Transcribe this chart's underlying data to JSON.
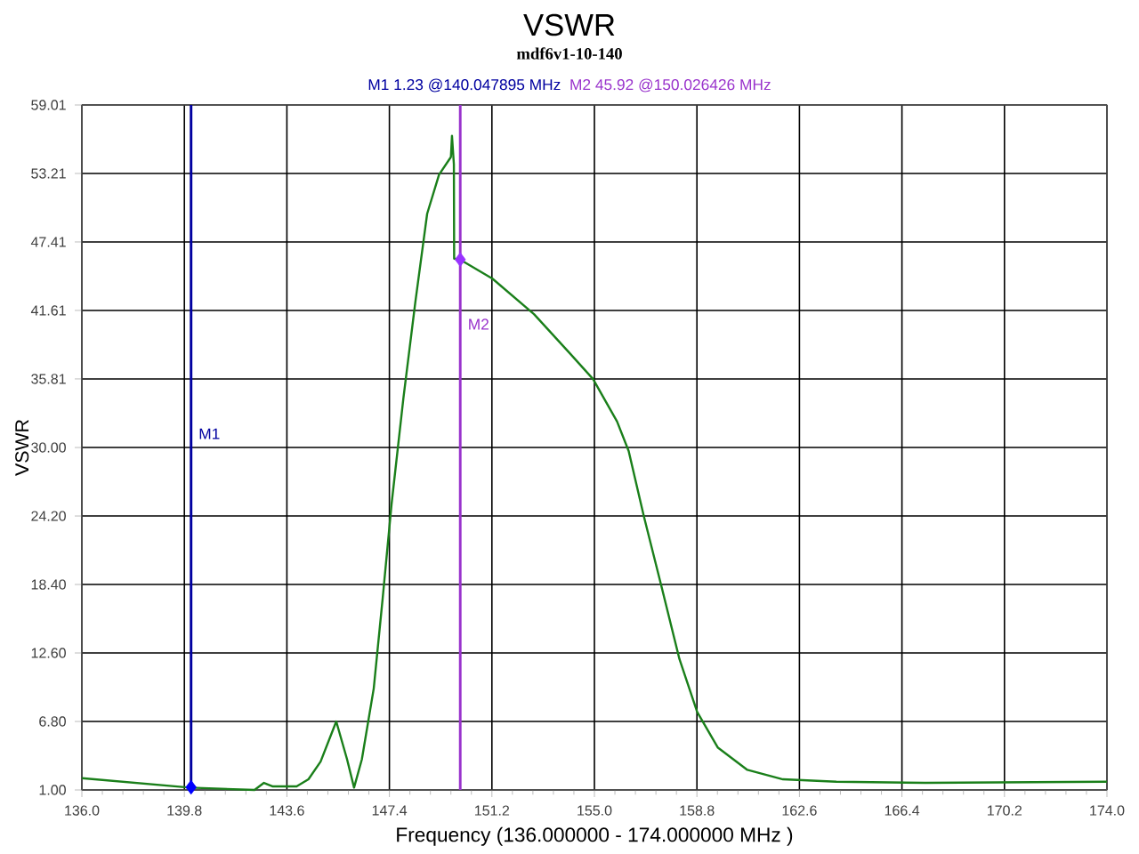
{
  "chart_data": {
    "type": "line",
    "title": "VSWR",
    "subtitle": "mdf6v1-10-140",
    "xlabel": "Frequency (136.000000 - 174.000000 MHz )",
    "ylabel": "VSWR",
    "annotations": [
      "M1  1.23 @140.047895 MHz",
      "M2  45.92 @150.026426 MHz"
    ],
    "xlim": [
      136,
      174
    ],
    "ylim": [
      1,
      59.01
    ],
    "xticks": [
      {
        "value": 136,
        "label": "136.0"
      },
      {
        "value": 139.8,
        "label": "139.8"
      },
      {
        "value": 143.6,
        "label": "143.6"
      },
      {
        "value": 147.4,
        "label": "147.4"
      },
      {
        "value": 151.2,
        "label": "151.2"
      },
      {
        "value": 155,
        "label": "155.0"
      },
      {
        "value": 158.8,
        "label": "158.8"
      },
      {
        "value": 162.6,
        "label": "162.6"
      },
      {
        "value": 166.4,
        "label": "166.4"
      },
      {
        "value": 170.2,
        "label": "170.2"
      },
      {
        "value": 174,
        "label": "174.0"
      }
    ],
    "yticks": [
      {
        "value": 1,
        "label": "1.00"
      },
      {
        "value": 6.8,
        "label": "6.80"
      },
      {
        "value": 12.6,
        "label": "12.60"
      },
      {
        "value": 18.4,
        "label": "18.40"
      },
      {
        "value": 24.2,
        "label": "24.20"
      },
      {
        "value": 30,
        "label": "30.00"
      },
      35.81,
      41.61,
      47.41,
      53.21,
      59.01
    ],
    "grid": true,
    "marker": "none",
    "line_style": "solid",
    "ref_lines": [
      {
        "axis": "x",
        "value": 140.047895,
        "label": "M1",
        "color": "#0000a0"
      },
      {
        "axis": "x",
        "value": 150.026426,
        "label": "M2",
        "color": "#9933cc"
      }
    ],
    "series": [
      {
        "color": "#1a7f1a",
        "x": [
          136,
          140.0,
          142.4,
          142.75,
          143.08,
          143.96,
          144.4,
          144.85,
          145.43,
          145.83,
          146.09,
          146.38,
          146.82,
          147.15,
          147.48,
          147.92,
          148.36,
          148.8,
          149.24,
          149.68,
          149.72,
          149.79,
          149.8,
          150.03,
          151.22,
          152.76,
          154.08,
          154.95,
          155.84,
          156.27,
          156.83,
          157.49,
          158.15,
          158.81,
          159.57,
          160.67,
          161.99,
          163.97,
          167.27,
          174
        ],
        "values": [
          2.0,
          1.2,
          1.0,
          1.6,
          1.3,
          1.3,
          1.9,
          3.4,
          6.8,
          3.6,
          1.2,
          3.6,
          9.6,
          17.2,
          25.2,
          34.2,
          42.3,
          49.8,
          53.1,
          54.6,
          56.4,
          54.0,
          46.0,
          45.9,
          44.3,
          41.3,
          38.0,
          35.8,
          32.2,
          29.7,
          24.2,
          18.2,
          12.1,
          7.6,
          4.6,
          2.7,
          1.9,
          1.7,
          1.6,
          1.7
        ]
      },
      {
        "type": "scatter",
        "marker": "diamond",
        "x": [
          140.047895,
          150.026426
        ],
        "values": [
          1.23,
          45.92
        ],
        "colors": [
          "#0000ff",
          "#9933ff"
        ]
      }
    ]
  }
}
